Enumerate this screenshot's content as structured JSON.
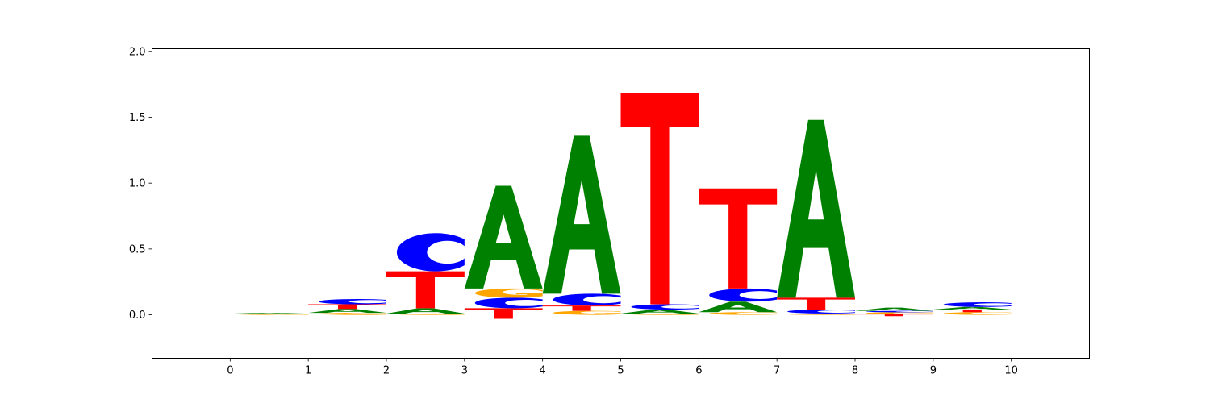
{
  "chart_data": {
    "type": "sequence-logo",
    "xlim": [
      -1,
      11
    ],
    "ylim": [
      -0.33,
      2.02
    ],
    "x_ticks": [
      "0",
      "1",
      "2",
      "3",
      "4",
      "5",
      "6",
      "7",
      "8",
      "9",
      "10"
    ],
    "y_ticks": [
      "0.0",
      "0.5",
      "1.0",
      "1.5",
      "2.0"
    ],
    "y_tick_values": [
      0,
      0.5,
      1.0,
      1.5,
      2.0
    ],
    "grid": false,
    "colors": {
      "A": "#008000",
      "C": "#0000ff",
      "G": "#ffa500",
      "T": "#ff0000"
    },
    "positions": [
      {
        "x": 0.5,
        "letters": [
          {
            "base": "G",
            "bottom": 0.0,
            "top": 0.004
          },
          {
            "base": "T",
            "bottom": 0.004,
            "top": 0.009
          },
          {
            "base": "A",
            "bottom": 0.009,
            "top": 0.016
          }
        ]
      },
      {
        "x": 1.5,
        "letters": [
          {
            "base": "G",
            "bottom": 0.0,
            "top": 0.015
          },
          {
            "base": "A",
            "bottom": 0.015,
            "top": 0.045
          },
          {
            "base": "T",
            "bottom": 0.045,
            "top": 0.08
          },
          {
            "base": "C",
            "bottom": 0.08,
            "top": 0.12
          }
        ]
      },
      {
        "x": 2.5,
        "letters": [
          {
            "base": "G",
            "bottom": 0.0,
            "top": 0.01
          },
          {
            "base": "A",
            "bottom": 0.01,
            "top": 0.05
          },
          {
            "base": "T",
            "bottom": 0.05,
            "top": 0.33
          },
          {
            "base": "C",
            "bottom": 0.33,
            "top": 0.62
          }
        ]
      },
      {
        "x": 3.5,
        "letters": [
          {
            "base": "T",
            "bottom": -0.03,
            "top": 0.05
          },
          {
            "base": "C",
            "bottom": 0.05,
            "top": 0.13
          },
          {
            "base": "G",
            "bottom": 0.13,
            "top": 0.2
          },
          {
            "base": "A",
            "bottom": 0.2,
            "top": 0.98
          }
        ]
      },
      {
        "x": 4.5,
        "letters": [
          {
            "base": "G",
            "bottom": 0.0,
            "top": 0.03
          },
          {
            "base": "T",
            "bottom": 0.03,
            "top": 0.07
          },
          {
            "base": "C",
            "bottom": 0.07,
            "top": 0.16
          },
          {
            "base": "A",
            "bottom": 0.16,
            "top": 1.36
          }
        ]
      },
      {
        "x": 5.5,
        "letters": [
          {
            "base": "G",
            "bottom": 0.0,
            "top": 0.01
          },
          {
            "base": "A",
            "bottom": 0.01,
            "top": 0.04
          },
          {
            "base": "C",
            "bottom": 0.04,
            "top": 0.08
          },
          {
            "base": "T",
            "bottom": 0.08,
            "top": 1.68
          }
        ]
      },
      {
        "x": 6.5,
        "letters": [
          {
            "base": "G",
            "bottom": 0.0,
            "top": 0.02
          },
          {
            "base": "A",
            "bottom": 0.02,
            "top": 0.1
          },
          {
            "base": "C",
            "bottom": 0.1,
            "top": 0.2
          },
          {
            "base": "T",
            "bottom": 0.2,
            "top": 0.96
          }
        ]
      },
      {
        "x": 7.5,
        "letters": [
          {
            "base": "G",
            "bottom": 0.0,
            "top": 0.01
          },
          {
            "base": "C",
            "bottom": 0.01,
            "top": 0.04
          },
          {
            "base": "T",
            "bottom": 0.04,
            "top": 0.13
          },
          {
            "base": "A",
            "bottom": 0.13,
            "top": 1.48
          }
        ]
      },
      {
        "x": 8.5,
        "letters": [
          {
            "base": "T",
            "bottom": -0.01,
            "top": 0.005
          },
          {
            "base": "G",
            "bottom": 0.005,
            "top": 0.02
          },
          {
            "base": "C",
            "bottom": 0.02,
            "top": 0.03
          },
          {
            "base": "A",
            "bottom": 0.03,
            "top": 0.055
          }
        ]
      },
      {
        "x": 9.5,
        "letters": [
          {
            "base": "G",
            "bottom": 0.0,
            "top": 0.02
          },
          {
            "base": "T",
            "bottom": 0.02,
            "top": 0.04
          },
          {
            "base": "A",
            "bottom": 0.04,
            "top": 0.06
          },
          {
            "base": "C",
            "bottom": 0.06,
            "top": 0.095
          }
        ]
      }
    ]
  }
}
